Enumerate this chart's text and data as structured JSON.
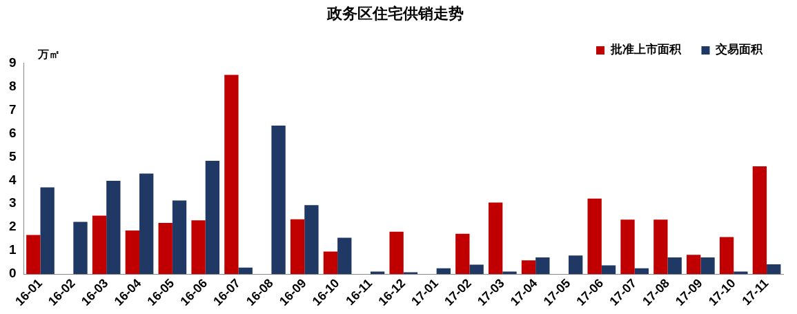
{
  "chart_data": {
    "type": "bar",
    "title": "政务区住宅供销走势",
    "ylabel": "万㎡",
    "categories": [
      "16-01",
      "16-02",
      "16-03",
      "16-04",
      "16-05",
      "16-06",
      "16-07",
      "16-08",
      "16-09",
      "16-10",
      "16-11",
      "16-12",
      "17-01",
      "17-02",
      "17-03",
      "17-04",
      "17-05",
      "17-06",
      "17-07",
      "17-08",
      "17-09",
      "17-10",
      "17-11"
    ],
    "series": [
      {
        "name": "批准上市面积",
        "color": "#c00000",
        "values": [
          1.67,
          0,
          2.49,
          1.86,
          2.18,
          2.29,
          8.5,
          0,
          2.34,
          0.96,
          0,
          1.81,
          0,
          1.72,
          3.05,
          0.59,
          0,
          3.22,
          2.32,
          2.32,
          0.82,
          1.58,
          4.6
        ]
      },
      {
        "name": "交易面积",
        "color": "#203864",
        "values": [
          3.7,
          2.23,
          3.98,
          4.29,
          3.14,
          4.83,
          0.28,
          6.33,
          2.94,
          1.55,
          0.11,
          0.08,
          0.25,
          0.4,
          0.11,
          0.71,
          0.79,
          0.37,
          0.25,
          0.71,
          0.71,
          0.11,
          0.42
        ]
      }
    ],
    "ylim": [
      0,
      9
    ],
    "yticks": [
      0,
      1,
      2,
      3,
      4,
      5,
      6,
      7,
      8,
      9
    ],
    "grid": false,
    "legend": "top right"
  }
}
